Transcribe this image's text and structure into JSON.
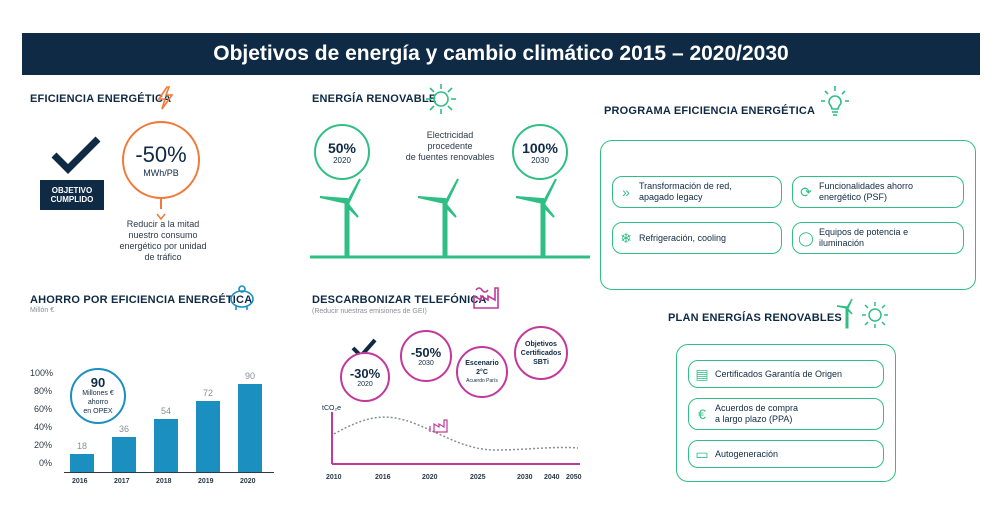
{
  "title": "Objetivos de energía y cambio climático 2015 – 2020/2030",
  "eficiencia": {
    "heading": "EFICIENCIA ENERGÉTICA",
    "badge": "OBJETIVO\nCUMPLIDO",
    "badge_line1": "OBJETIVO",
    "badge_line2": "CUMPLIDO",
    "pct": "-50%",
    "unit": "MWh/PB",
    "desc1": "Reducir a la mitad",
    "desc2": "nuestro consumo",
    "desc3": "energético por unidad",
    "desc4": "de tráfico"
  },
  "renovable": {
    "heading": "ENERGÍA RENOVABLE",
    "left_pct": "50%",
    "left_year": "2020",
    "center1": "Electricidad",
    "center2": "procedente",
    "center3": "de fuentes renovables",
    "right_pct": "100%",
    "right_year": "2030"
  },
  "programa": {
    "heading": "PROGRAMA EFICIENCIA ENERGÉTICA",
    "items": [
      {
        "l1": "Transformación de red,",
        "l2": "apagado legacy"
      },
      {
        "l1": "Funcionalidades ahorro",
        "l2": "energético (PSF)"
      },
      {
        "l1": "Refrigeración, cooling",
        "l2": ""
      },
      {
        "l1": "Equipos de potencia e",
        "l2": "iluminación"
      }
    ]
  },
  "ahorro": {
    "heading": "AHORRO POR EFICIENCIA ENERGÉTICA",
    "subheading": "Millón €",
    "circle_num": "90",
    "circle_l1": "Millones €",
    "circle_l2": "ahorro",
    "circle_l3": "en OPEX",
    "y_ticks": [
      "100%",
      "80%",
      "60%",
      "40%",
      "20%",
      "0%"
    ]
  },
  "chart_data": {
    "type": "bar",
    "title": "AHORRO POR EFICIENCIA ENERGÉTICA",
    "ylabel": "Millón €",
    "categories": [
      "2016",
      "2017",
      "2018",
      "2019",
      "2020"
    ],
    "values": [
      18,
      36,
      54,
      72,
      90
    ],
    "ylim": [
      0,
      100
    ]
  },
  "descarbonizar": {
    "heading": "DESCARBONIZAR TELEFÓNICA",
    "subheading": "(Reducir nuestras emisiones de GEI)",
    "c1_pct": "-30%",
    "c1_year": "2020",
    "c2_pct": "-50%",
    "c2_year": "2030",
    "c3_l1": "Escenario",
    "c3_l2": "2°C",
    "c3_l3": "Acuerdo París",
    "c4_l1": "Objetivos",
    "c4_l2": "Certificados",
    "c4_l3": "SBTi",
    "y_label": "tCO₂e",
    "years": [
      "2010",
      "2016",
      "2020",
      "2025",
      "2030",
      "2040",
      "2050"
    ]
  },
  "plan": {
    "heading": "PLAN ENERGÍAS RENOVABLES",
    "items": [
      {
        "l1": "Certificados Garantía de Origen",
        "l2": ""
      },
      {
        "l1": "Acuerdos de compra",
        "l2": "a largo plazo (PPA)"
      },
      {
        "l1": "Autogeneración",
        "l2": ""
      }
    ]
  },
  "colors": {
    "navy": "#0f2a44",
    "green": "#2fbf85",
    "orange": "#f07a3a",
    "magenta": "#c2399b",
    "bar": "#1a8fc0"
  }
}
